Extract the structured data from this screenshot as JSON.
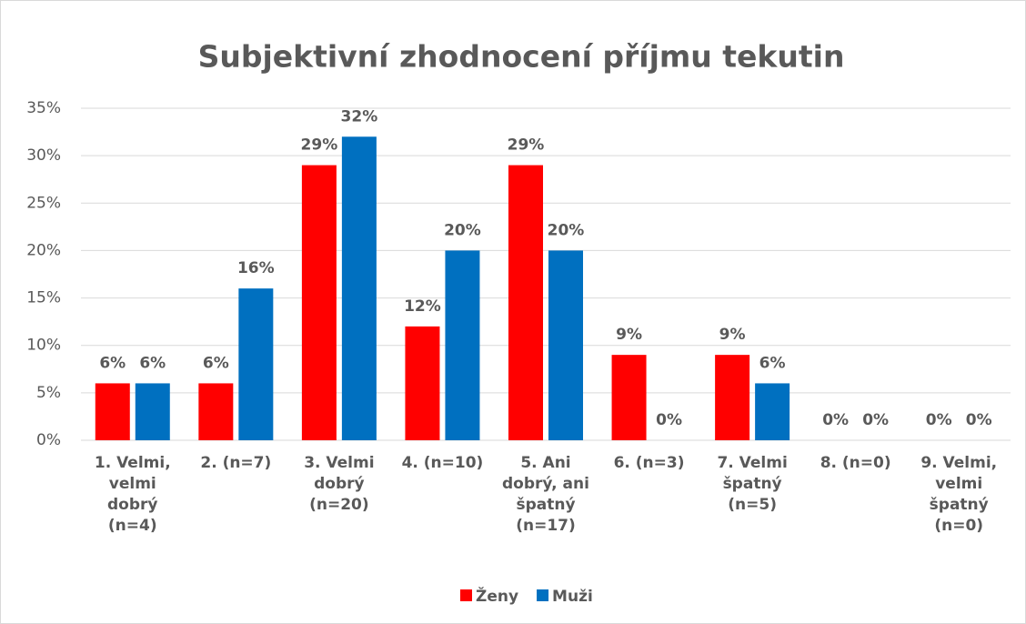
{
  "chart_data": {
    "type": "bar",
    "title": "Subjektivní zhodnocení příjmu tekutin",
    "categories": [
      "1. Velmi,\nvelmi\ndobrý\n(n=4)",
      "2. (n=7)",
      "3. Velmi\ndobrý\n(n=20)",
      "4. (n=10)",
      "5. Ani\ndobrý, ani\nšpatný\n(n=17)",
      "6. (n=3)",
      "7. Velmi\nšpatný\n(n=5)",
      "8. (n=0)",
      "9. Velmi,\nvelmi\nšpatný\n(n=0)"
    ],
    "series": [
      {
        "name": "Ženy",
        "color": "#ff0000",
        "values": [
          6,
          6,
          29,
          12,
          29,
          9,
          9,
          0,
          0
        ],
        "value_labels": [
          "6%",
          "6%",
          "29%",
          "12%",
          "29%",
          "9%",
          "9%",
          "0%",
          "0%"
        ]
      },
      {
        "name": "Muži",
        "color": "#0070c0",
        "values": [
          6,
          16,
          32,
          20,
          20,
          0,
          6,
          0,
          0
        ],
        "value_labels": [
          "6%",
          "16%",
          "32%",
          "20%",
          "20%",
          "0%",
          "6%",
          "0%",
          "0%"
        ]
      }
    ],
    "ylim": [
      0,
      35
    ],
    "yticks": [
      {
        "value": 0,
        "label": "0%"
      },
      {
        "value": 5,
        "label": "5%"
      },
      {
        "value": 10,
        "label": "10%"
      },
      {
        "value": 15,
        "label": "15%"
      },
      {
        "value": 20,
        "label": "20%"
      },
      {
        "value": 25,
        "label": "25%"
      },
      {
        "value": 30,
        "label": "30%"
      },
      {
        "value": 35,
        "label": "35%"
      }
    ],
    "grid": true,
    "legend": "bottom"
  }
}
